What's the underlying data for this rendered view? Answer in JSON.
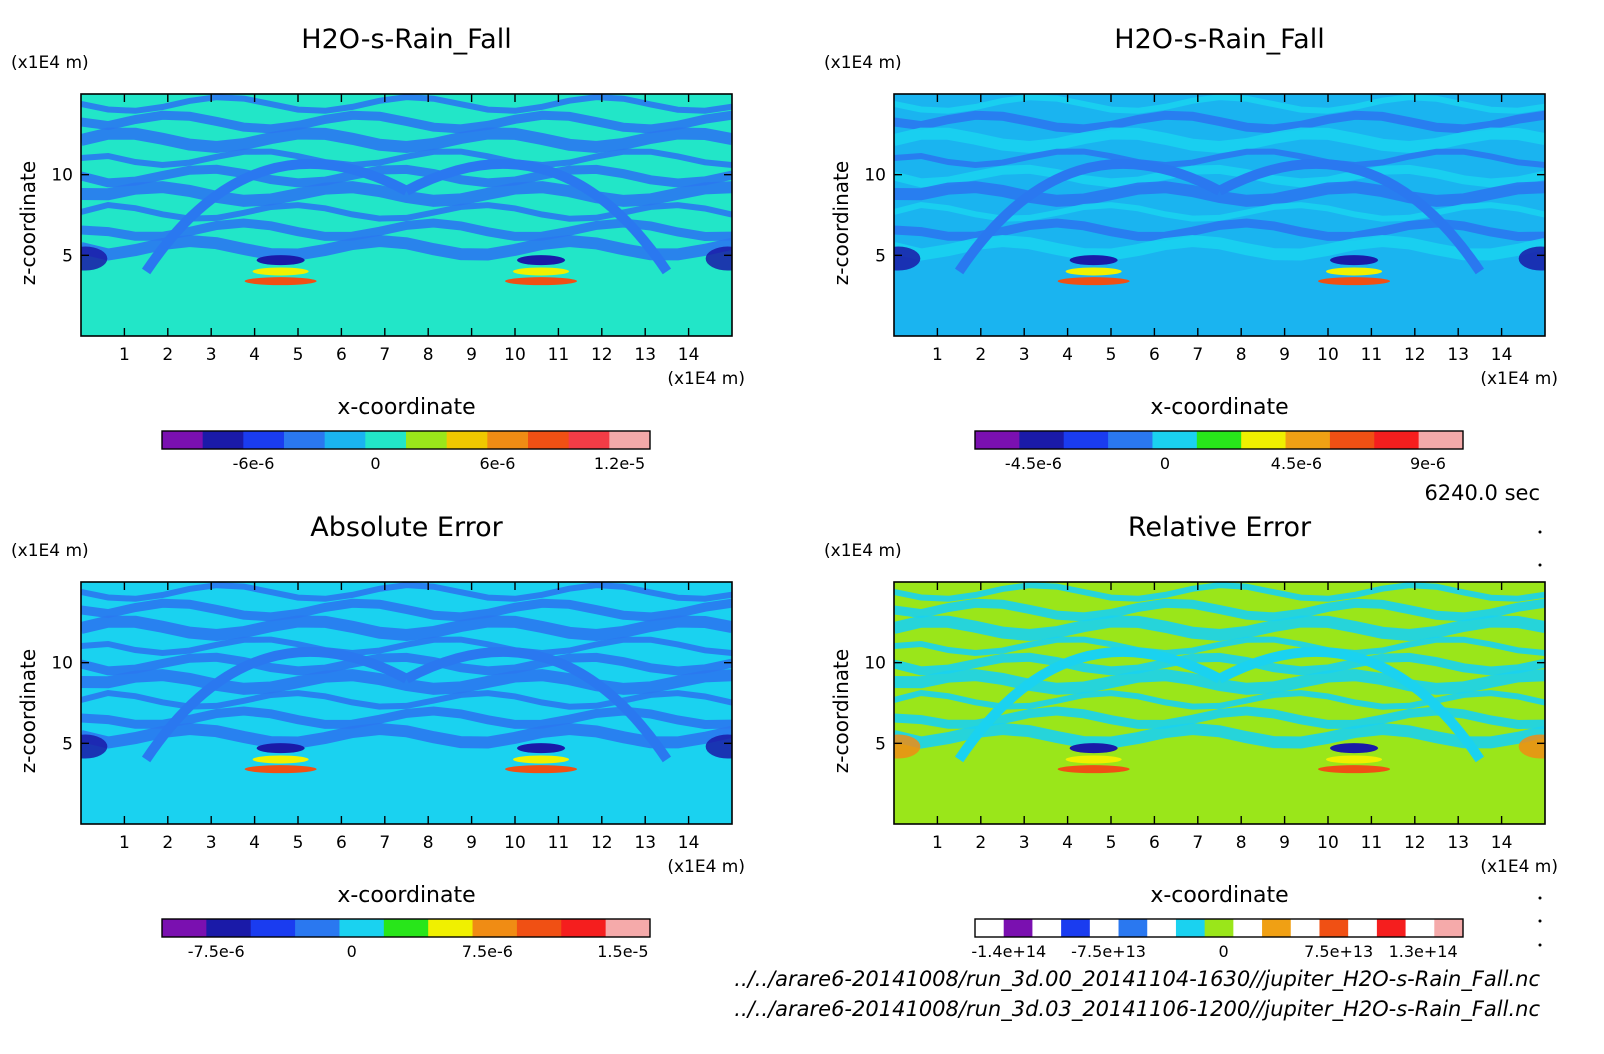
{
  "time_label": "6240.0 sec",
  "files": [
    "../../arare6-20141008/run_3d.00_20141104-1630//jupiter_H2O-s-Rain_Fall.nc",
    "../../arare6-20141008/run_3d.03_20141106-1200//jupiter_H2O-s-Rain_Fall.nc"
  ],
  "chart_data": [
    {
      "type": "heatmap",
      "title": "H2O-s-Rain_Fall",
      "xlabel": "x-coordinate",
      "ylabel": "z-coordinate",
      "x_unit": "(x1E4 m)",
      "y_unit": "(x1E4 m)",
      "xlim": [
        0,
        15
      ],
      "ylim": [
        0,
        15
      ],
      "x_ticks": [
        1,
        2,
        3,
        4,
        5,
        6,
        7,
        8,
        9,
        10,
        11,
        12,
        13,
        14
      ],
      "y_ticks": [
        5,
        10
      ],
      "background": "#22e6c8",
      "colors": [
        "#7a10b0",
        "#1a1aa8",
        "#1a3cf0",
        "#2a78f0",
        "#1ab4f0",
        "#22e6c8",
        "#9ae61a",
        "#f0c800",
        "#f08c14",
        "#f05014",
        "#f53c46",
        "#f5aaaa"
      ],
      "colorbar_labels": [
        {
          "value": -6e-06,
          "text": "-6e-6"
        },
        {
          "value": 0,
          "text": "0"
        },
        {
          "value": 6e-06,
          "text": "6e-6"
        },
        {
          "value": 1.2e-05,
          "text": "1.2e-5"
        }
      ],
      "colorbar_range": [
        -1.05e-05,
        1.35e-05
      ]
    },
    {
      "type": "heatmap",
      "title": "H2O-s-Rain_Fall",
      "xlabel": "x-coordinate",
      "ylabel": "z-coordinate",
      "x_unit": "(x1E4 m)",
      "y_unit": "(x1E4 m)",
      "xlim": [
        0,
        15
      ],
      "ylim": [
        0,
        15
      ],
      "x_ticks": [
        1,
        2,
        3,
        4,
        5,
        6,
        7,
        8,
        9,
        10,
        11,
        12,
        13,
        14
      ],
      "y_ticks": [
        5,
        10
      ],
      "background": "#1ab4f0",
      "colors": [
        "#7a10b0",
        "#1a1aa8",
        "#1a3cf0",
        "#2a78f0",
        "#1ad2f0",
        "#28e61a",
        "#f0f000",
        "#f0a014",
        "#f05014",
        "#f51e1e",
        "#f5aaaa"
      ],
      "colorbar_labels": [
        {
          "value": -4.5e-06,
          "text": "-4.5e-6"
        },
        {
          "value": 0,
          "text": "0"
        },
        {
          "value": 4.5e-06,
          "text": "4.5e-6"
        },
        {
          "value": 9e-06,
          "text": "9e-6"
        }
      ],
      "colorbar_range": [
        -6.5e-06,
        1.02e-05
      ]
    },
    {
      "type": "heatmap",
      "title": "Absolute Error",
      "xlabel": "x-coordinate",
      "ylabel": "z-coordinate",
      "x_unit": "(x1E4 m)",
      "y_unit": "(x1E4 m)",
      "xlim": [
        0,
        15
      ],
      "ylim": [
        0,
        15
      ],
      "x_ticks": [
        1,
        2,
        3,
        4,
        5,
        6,
        7,
        8,
        9,
        10,
        11,
        12,
        13,
        14
      ],
      "y_ticks": [
        5,
        10
      ],
      "background": "#1ad2f0",
      "colors": [
        "#7a10b0",
        "#1a1aa8",
        "#1a3cf0",
        "#2a78f0",
        "#1ad2f0",
        "#28e61a",
        "#f0f000",
        "#f08c14",
        "#f05014",
        "#f51e1e",
        "#f5aaaa"
      ],
      "colorbar_labels": [
        {
          "value": -7.5e-06,
          "text": "-7.5e-6"
        },
        {
          "value": 0,
          "text": "0"
        },
        {
          "value": 7.5e-06,
          "text": "7.5e-6"
        },
        {
          "value": 1.5e-05,
          "text": "1.5e-5"
        }
      ],
      "colorbar_range": [
        -1.05e-05,
        1.65e-05
      ]
    },
    {
      "type": "heatmap",
      "title": "Relative Error",
      "xlabel": "x-coordinate",
      "ylabel": "z-coordinate",
      "x_unit": "(x1E4 m)",
      "y_unit": "(x1E4 m)",
      "xlim": [
        0,
        15
      ],
      "ylim": [
        0,
        15
      ],
      "x_ticks": [
        1,
        2,
        3,
        4,
        5,
        6,
        7,
        8,
        9,
        10,
        11,
        12,
        13,
        14
      ],
      "y_ticks": [
        5,
        10
      ],
      "background": "#9ae61a",
      "colors": [
        "#ffffff",
        "#7a10b0",
        "#ffffff",
        "#1a3cf0",
        "#ffffff",
        "#2a78f0",
        "#ffffff",
        "#1ad2f0",
        "#9ae61a",
        "#ffffff",
        "#f0a014",
        "#ffffff",
        "#f05014",
        "#ffffff",
        "#f51e1e",
        "#ffffff",
        "#f5aaaa"
      ],
      "colorbar_labels": [
        {
          "value": -140000000000000.0,
          "text": "-1.4e+14"
        },
        {
          "value": -75000000000000.0,
          "text": "-7.5e+13"
        },
        {
          "value": 0,
          "text": "0"
        },
        {
          "value": 75000000000000.0,
          "text": "7.5e+13"
        },
        {
          "value": 130000000000000.0,
          "text": "1.3e+14"
        }
      ],
      "colorbar_range": [
        -162000000000000.0,
        156000000000000.0
      ]
    }
  ]
}
